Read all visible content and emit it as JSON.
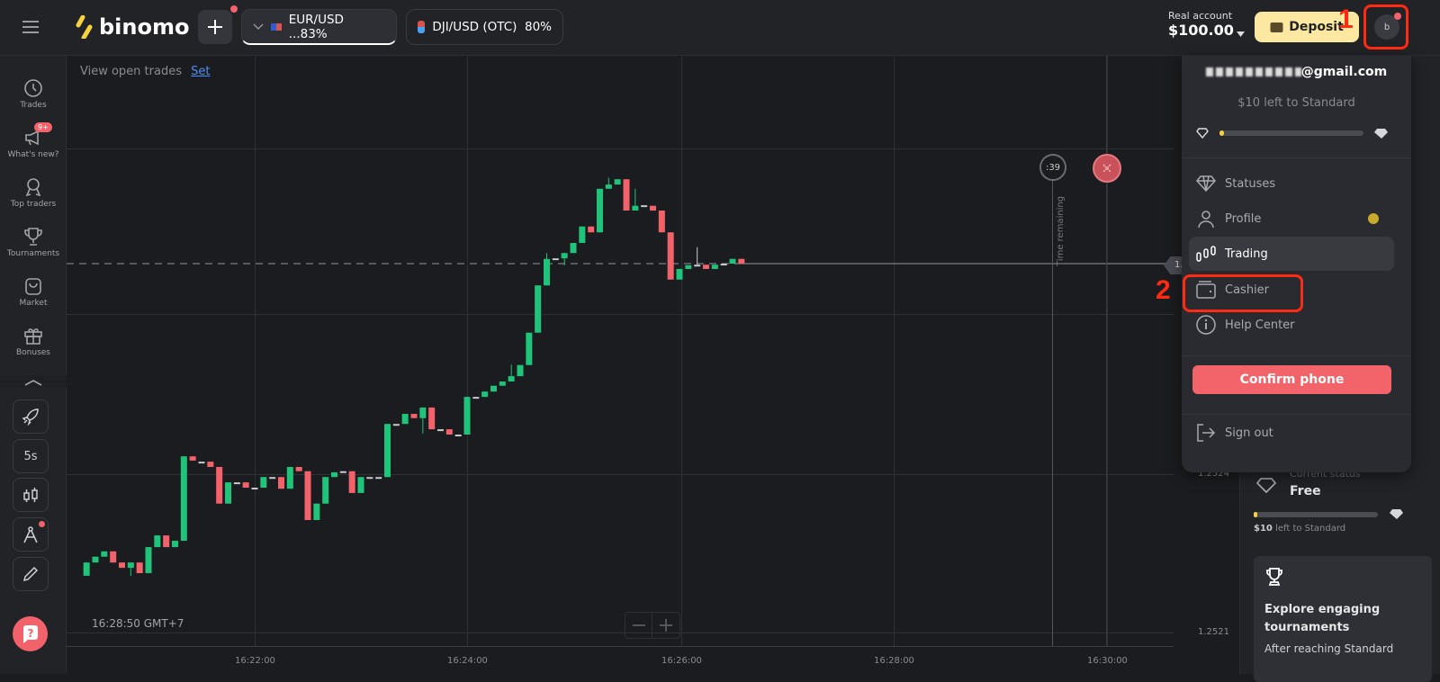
{
  "header": {
    "logo": "binomo",
    "assets": [
      {
        "label": "EUR/USD ...83%",
        "active": true
      },
      {
        "label": "DJI/USD (OTC)  80%",
        "active": false
      }
    ],
    "account_type": "Real account",
    "balance": "$100.00",
    "deposit_label": "Deposit",
    "avatar_letter": "b"
  },
  "sidebar": {
    "items": [
      {
        "label": "Trades",
        "icon": "clock-icon"
      },
      {
        "label": "What's new?",
        "icon": "megaphone-icon",
        "badge": "9+"
      },
      {
        "label": "Top traders",
        "icon": "medal-icon"
      },
      {
        "label": "Tournaments",
        "icon": "trophy-icon"
      },
      {
        "label": "Market",
        "icon": "bag-icon"
      },
      {
        "label": "Bonuses",
        "icon": "gift-icon"
      }
    ],
    "tools": {
      "timeframe": "5s"
    }
  },
  "chart": {
    "open_trades_text": "View open trades",
    "open_trades_link": "Set",
    "clock": "16:28:50 GMT+7",
    "timer": ":39",
    "time_remaining": "Time remaining",
    "current_price_label": "1.",
    "colors": {
      "up": "#1fc37a",
      "down": "#f2626b",
      "doji": "#c8c9cc"
    }
  },
  "chart_data": {
    "type": "candlestick",
    "interval": "5s",
    "x_ticks": [
      "16:22:00",
      "16:24:00",
      "16:26:00",
      "16:28:00",
      "16:30:00"
    ],
    "y_ticks": [
      "1.2524",
      "1.2521"
    ],
    "grid": true,
    "current_price": 1.252783,
    "candles": [
      [
        "16:20:25",
        1.252195,
        1.25222,
        1.252195,
        1.25222
      ],
      [
        "16:20:30",
        1.25222,
        1.252231,
        1.25222,
        1.252231
      ],
      [
        "16:20:35",
        1.252231,
        1.252241,
        1.252231,
        1.252241
      ],
      [
        "16:20:40",
        1.252241,
        1.252241,
        1.25222,
        1.25222
      ],
      [
        "16:20:45",
        1.25222,
        1.25222,
        1.25221,
        1.25221
      ],
      [
        "16:20:50",
        1.25221,
        1.25222,
        1.252195,
        1.25222
      ],
      [
        "16:20:55",
        1.25222,
        1.25222,
        1.2522,
        1.2522
      ],
      [
        "16:21:00",
        1.2522,
        1.252249,
        1.2522,
        1.252249
      ],
      [
        "16:21:05",
        1.252249,
        1.252271,
        1.252249,
        1.252271
      ],
      [
        "16:21:10",
        1.252271,
        1.252271,
        1.252249,
        1.252249
      ],
      [
        "16:21:15",
        1.252249,
        1.252261,
        1.252249,
        1.252261
      ],
      [
        "16:21:20",
        1.252261,
        1.25242,
        1.252261,
        1.25242
      ],
      [
        "16:21:25",
        1.25242,
        1.25242,
        1.252412,
        1.252412
      ],
      [
        "16:21:30",
        1.25241,
        1.25241,
        1.25241,
        1.25241
      ],
      [
        "16:21:35",
        1.25241,
        1.25241,
        1.2524,
        1.2524
      ],
      [
        "16:21:40",
        1.2524,
        1.2524,
        1.252331,
        1.252331
      ],
      [
        "16:21:45",
        1.252331,
        1.252371,
        1.252331,
        1.252371
      ],
      [
        "16:21:50",
        1.252371,
        1.252371,
        1.252371,
        1.252371
      ],
      [
        "16:21:55",
        1.252371,
        1.252371,
        1.252361,
        1.252361
      ],
      [
        "16:22:00",
        1.252361,
        1.252361,
        1.252361,
        1.252361
      ],
      [
        "16:22:05",
        1.252361,
        1.252381,
        1.252361,
        1.252381
      ],
      [
        "16:22:10",
        1.252381,
        1.252381,
        1.252381,
        1.252381
      ],
      [
        "16:22:15",
        1.252381,
        1.252381,
        1.252359,
        1.252359
      ],
      [
        "16:22:20",
        1.252359,
        1.2524,
        1.252359,
        1.2524
      ],
      [
        "16:22:25",
        1.2524,
        1.2524,
        1.252392,
        1.252392
      ],
      [
        "16:22:30",
        1.252392,
        1.252392,
        1.2523,
        1.2523
      ],
      [
        "16:22:35",
        1.2523,
        1.252331,
        1.2523,
        1.252331
      ],
      [
        "16:22:40",
        1.252331,
        1.252381,
        1.252331,
        1.252381
      ],
      [
        "16:22:45",
        1.252381,
        1.25239,
        1.252381,
        1.25239
      ],
      [
        "16:22:50",
        1.252392,
        1.252392,
        1.252392,
        1.252392
      ],
      [
        "16:22:55",
        1.252392,
        1.252392,
        1.252351,
        1.252351
      ],
      [
        "16:23:00",
        1.252351,
        1.252381,
        1.252351,
        1.252381
      ],
      [
        "16:23:05",
        1.252381,
        1.252381,
        1.252381,
        1.252381
      ],
      [
        "16:23:10",
        1.252381,
        1.252381,
        1.252381,
        1.252381
      ],
      [
        "16:23:15",
        1.252381,
        1.252481,
        1.252381,
        1.252481
      ],
      [
        "16:23:20",
        1.252481,
        1.252481,
        1.252481,
        1.252481
      ],
      [
        "16:23:25",
        1.252481,
        1.2525,
        1.252481,
        1.2525
      ],
      [
        "16:23:30",
        1.2525,
        1.2525,
        1.252492,
        1.252492
      ],
      [
        "16:23:35",
        1.252492,
        1.252512,
        1.252463,
        1.252512
      ],
      [
        "16:23:40",
        1.252512,
        1.252512,
        1.252471,
        1.252471
      ],
      [
        "16:23:45",
        1.252471,
        1.252471,
        1.252471,
        1.252471
      ],
      [
        "16:23:50",
        1.252471,
        1.252471,
        1.252461,
        1.252461
      ],
      [
        "16:23:55",
        1.252461,
        1.252461,
        1.252461,
        1.252461
      ],
      [
        "16:24:00",
        1.252461,
        1.252532,
        1.252461,
        1.252532
      ],
      [
        "16:24:05",
        1.252532,
        1.252532,
        1.252532,
        1.252532
      ],
      [
        "16:24:10",
        1.252532,
        1.252542,
        1.252532,
        1.252542
      ],
      [
        "16:24:15",
        1.252542,
        1.252553,
        1.252542,
        1.252553
      ],
      [
        "16:24:20",
        1.252553,
        1.252561,
        1.252553,
        1.252561
      ],
      [
        "16:24:25",
        1.252561,
        1.252593,
        1.252561,
        1.252571
      ],
      [
        "16:24:30",
        1.252571,
        1.252592,
        1.252571,
        1.252592
      ],
      [
        "16:24:35",
        1.252592,
        1.252653,
        1.252592,
        1.252653
      ],
      [
        "16:24:40",
        1.252653,
        1.252742,
        1.252653,
        1.252742
      ],
      [
        "16:24:45",
        1.252742,
        1.252803,
        1.252742,
        1.252792
      ],
      [
        "16:24:50",
        1.252793,
        1.252793,
        1.252793,
        1.252793
      ],
      [
        "16:24:55",
        1.252793,
        1.252803,
        1.25278,
        1.252803
      ],
      [
        "16:25:00",
        1.252803,
        1.252822,
        1.252803,
        1.252822
      ],
      [
        "16:25:05",
        1.252822,
        1.252853,
        1.252822,
        1.252853
      ],
      [
        "16:25:10",
        1.252853,
        1.252853,
        1.252842,
        1.252842
      ],
      [
        "16:25:15",
        1.252842,
        1.252924,
        1.252842,
        1.252924
      ],
      [
        "16:25:20",
        1.252924,
        1.252945,
        1.252924,
        1.252932
      ],
      [
        "16:25:25",
        1.252932,
        1.252942,
        1.252932,
        1.252942
      ],
      [
        "16:25:30",
        1.252942,
        1.252942,
        1.252883,
        1.252883
      ],
      [
        "16:25:35",
        1.252883,
        1.252924,
        1.252883,
        1.252892
      ],
      [
        "16:25:40",
        1.252893,
        1.252893,
        1.252893,
        1.252893
      ],
      [
        "16:25:45",
        1.252892,
        1.252892,
        1.252883,
        1.252883
      ],
      [
        "16:25:50",
        1.252883,
        1.252883,
        1.252842,
        1.252842
      ],
      [
        "16:25:55",
        1.252842,
        1.252842,
        1.252753,
        1.252753
      ],
      [
        "16:26:00",
        1.252753,
        1.252773,
        1.252753,
        1.252773
      ],
      [
        "16:26:05",
        1.252773,
        1.25278,
        1.252773,
        1.25278
      ],
      [
        "16:26:10",
        1.252781,
        1.252814,
        1.252781,
        1.252781
      ],
      [
        "16:26:15",
        1.252781,
        1.252781,
        1.252773,
        1.252773
      ],
      [
        "16:26:20",
        1.252773,
        1.252781,
        1.252773,
        1.252781
      ],
      [
        "16:26:25",
        1.252783,
        1.252783,
        1.252783,
        1.252783
      ],
      [
        "16:26:30",
        1.252783,
        1.252792,
        1.252783,
        1.252792
      ],
      [
        "16:26:35",
        1.252792,
        1.252792,
        1.252783,
        1.252783
      ]
    ]
  },
  "menu": {
    "email_visible": "@gmail.com",
    "status_progress_text": "$10 left to Standard",
    "status_progress": 0.03,
    "items": [
      {
        "label": "Statuses",
        "icon": "diamond-icon"
      },
      {
        "label": "Profile",
        "icon": "user-icon"
      },
      {
        "label": "Trading",
        "icon": "candles-icon",
        "active": true
      },
      {
        "label": "Cashier",
        "icon": "wallet-icon"
      },
      {
        "label": "Help Center",
        "icon": "info-icon"
      }
    ],
    "confirm_phone": "Confirm phone",
    "sign_out": "Sign out"
  },
  "right_panel": {
    "status_caption": "Current status",
    "status": "Free",
    "progress_amount": "$10",
    "progress_text": "left to Standard",
    "progress": 0.03,
    "card_title": "Explore engaging tournaments",
    "card_text": "After reaching Standard"
  },
  "annotations": {
    "step1": "1",
    "step2": "2",
    "color": "#ff2a12"
  }
}
